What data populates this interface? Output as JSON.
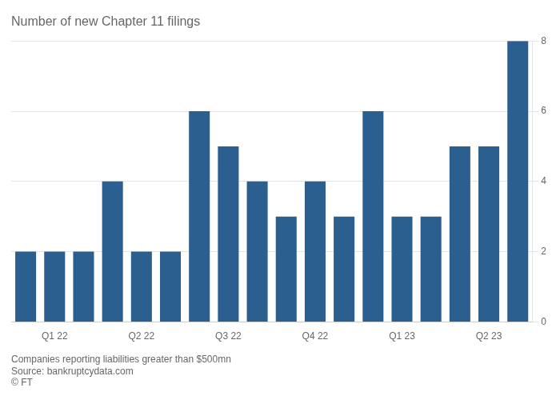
{
  "chart_data": {
    "type": "bar",
    "title": "Number of new Chapter 11 filings",
    "annotations": [
      "Companies reporting liabilities greater than $500mn",
      "Source: bankruptcydata.com",
      "© FT"
    ],
    "categories": [
      null,
      "Q1 22",
      null,
      null,
      "Q2 22",
      null,
      null,
      "Q3 22",
      null,
      null,
      "Q4 22",
      null,
      null,
      "Q1 23",
      null,
      null,
      "Q2 23",
      null
    ],
    "values": [
      2,
      2,
      2,
      4,
      2,
      2,
      6,
      5,
      4,
      3,
      4,
      3,
      6,
      3,
      3,
      5,
      5,
      8
    ],
    "color": "#2a5f8f",
    "ylim": [
      0,
      8
    ],
    "yticks": [
      0,
      2,
      4,
      6,
      8
    ],
    "grid": true
  }
}
